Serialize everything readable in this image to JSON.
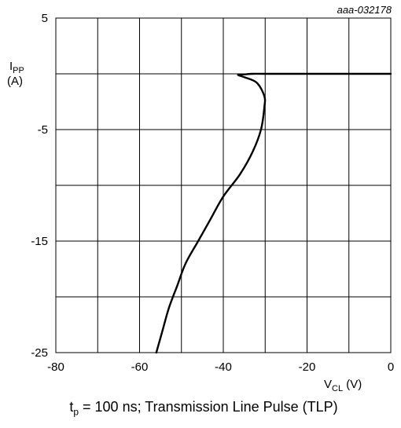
{
  "chart_code": "aaa-032178",
  "caption": {
    "t_main": "t",
    "t_sub": "p",
    "rest": " = 100 ns; Transmission Line Pulse (TLP)"
  },
  "chart_data": {
    "type": "line",
    "title": "",
    "xlabel": {
      "main": "V",
      "sub": "CL",
      "unit": " (V)"
    },
    "ylabel": {
      "main": "I",
      "sub": "PP",
      "unit": "(A)"
    },
    "xlim": [
      -80,
      0
    ],
    "ylim": [
      -25,
      5
    ],
    "x_ticks": [
      -80,
      -60,
      -40,
      -20,
      0
    ],
    "y_ticks": [
      5,
      -5,
      -15,
      -25
    ],
    "x_tick_labels": [
      "-80",
      "-60",
      "-40",
      "-20",
      "0"
    ],
    "y_tick_labels": [
      "5",
      "-5",
      "-15",
      "-25"
    ],
    "x_grid": [
      -80,
      -70,
      -60,
      -50,
      -40,
      -30,
      -20,
      -10,
      0
    ],
    "y_grid": [
      5,
      0,
      -5,
      -10,
      -15,
      -20,
      -25
    ],
    "grid": true,
    "series": [
      {
        "x": [
          0,
          -10,
          -20,
          -30,
          -33,
          -35,
          -36.5,
          -35,
          -32,
          -30.2,
          -30.2,
          -31,
          -33,
          -36,
          -40,
          -43,
          -46,
          -49,
          -51,
          -53,
          -54.5,
          -56
        ],
        "y": [
          0,
          0,
          0,
          0,
          0,
          -0.05,
          -0.1,
          -0.3,
          -0.8,
          -2,
          -3,
          -5,
          -7,
          -9,
          -11,
          -13,
          -15,
          -17,
          -19,
          -21,
          -23,
          -25
        ]
      }
    ]
  }
}
